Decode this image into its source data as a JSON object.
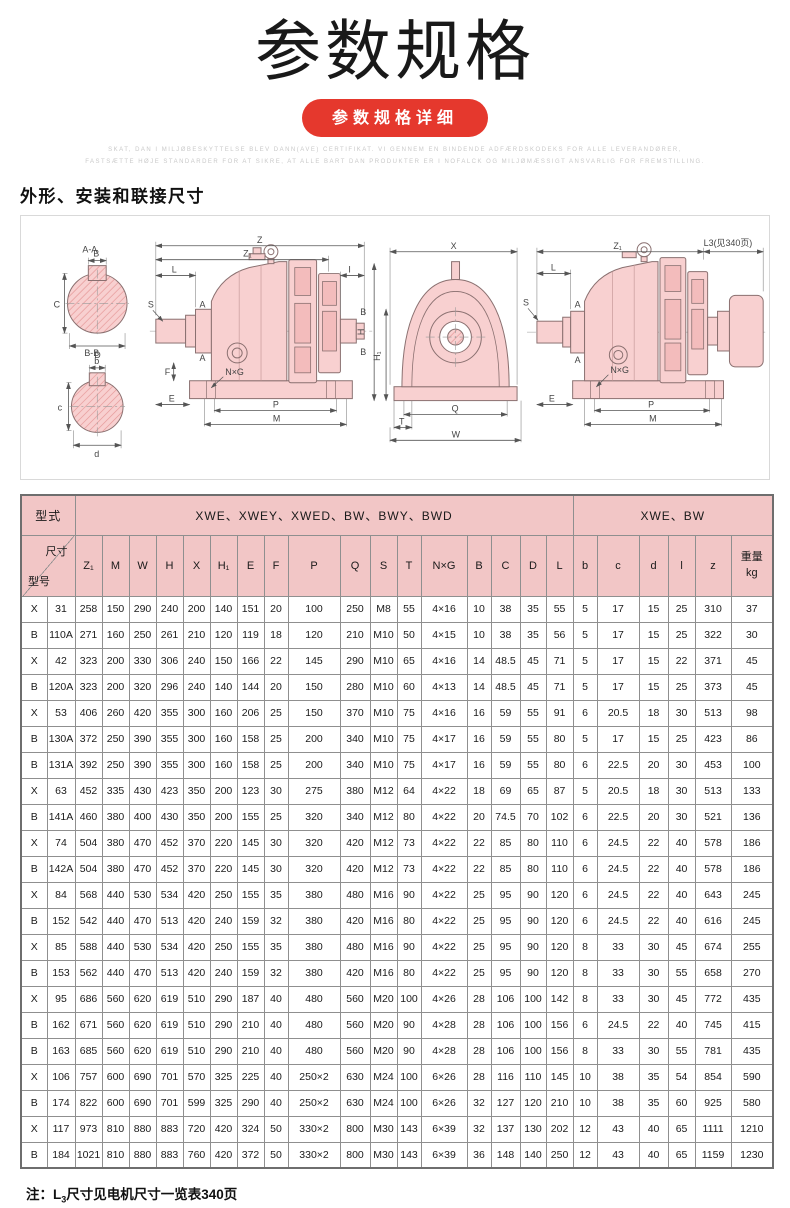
{
  "page": {
    "title": "参数规格",
    "badge": "参数规格详细",
    "fineprint_line1": "SKAT, DAN I MILJØBESKYTTELSE BLEV DANN(AVE) CERTIFIKAT. VI GENNEM EN BINDENDE ADFÆRDSKODEKS FOR ALLE LEVERANDØRER,",
    "fineprint_line2": "FASTSÆTTE HØJE STANDARDER FOR AT SIKRE, AT ALLE BART DAN PRODUKTER ER I NOFALCK OG MILJØMÆSSIGT ANSVARLIG FOR FREMSTILLING.",
    "section_heading": "外形、安装和联接尺寸",
    "note_prefix": "注：L",
    "note_sub": "3",
    "note_rest": "尺寸见电机尺寸一览表340页"
  },
  "colors": {
    "accent_red": "#e5382d",
    "header_pink": "#f2c6c6",
    "drawing_pink": "#f8d0d0",
    "grid_line": "#8f8f8f"
  },
  "diagram": {
    "labels": {
      "aa": "A-A",
      "bb": "B-B",
      "B": "B",
      "C": "C",
      "D": "D",
      "b": "b",
      "c": "c",
      "d": "d",
      "Z": "Z",
      "Z1": "Z₁",
      "L": "L",
      "I": "I",
      "S": "S",
      "A": "A",
      "NxG": "N×G",
      "F": "F",
      "E": "E",
      "P": "P",
      "M": "M",
      "X": "X",
      "H": "H",
      "H1": "H₁",
      "Q": "Q",
      "T": "T",
      "W": "W",
      "L3": "L3(见340页)"
    }
  },
  "table": {
    "type_header": "型式",
    "group1": "XWE、XWEY、XWED、BW、BWY、BWD",
    "group2": "XWE、BW",
    "corner_top": "尺寸",
    "corner_bottom": "型号",
    "columns": [
      "Z₁",
      "M",
      "W",
      "H",
      "X",
      "H₁",
      "E",
      "F",
      "P",
      "Q",
      "S",
      "T",
      "N×G",
      "B",
      "C",
      "D",
      "L",
      "b",
      "c",
      "d",
      "l",
      "z"
    ],
    "weight_line1": "重量",
    "weight_line2": "kg",
    "rows": [
      [
        "X",
        "31",
        "258",
        "150",
        "290",
        "240",
        "200",
        "140",
        "151",
        "20",
        "100",
        "250",
        "M8",
        "55",
        "4×16",
        "10",
        "38",
        "35",
        "55",
        "5",
        "17",
        "15",
        "25",
        "310",
        "37"
      ],
      [
        "B",
        "110A",
        "271",
        "160",
        "250",
        "261",
        "210",
        "120",
        "119",
        "18",
        "120",
        "210",
        "M10",
        "50",
        "4×15",
        "10",
        "38",
        "35",
        "56",
        "5",
        "17",
        "15",
        "25",
        "322",
        "30"
      ],
      [
        "X",
        "42",
        "323",
        "200",
        "330",
        "306",
        "240",
        "150",
        "166",
        "22",
        "145",
        "290",
        "M10",
        "65",
        "4×16",
        "14",
        "48.5",
        "45",
        "71",
        "5",
        "17",
        "15",
        "22",
        "371",
        "45"
      ],
      [
        "B",
        "120A",
        "323",
        "200",
        "320",
        "296",
        "240",
        "140",
        "144",
        "20",
        "150",
        "280",
        "M10",
        "60",
        "4×13",
        "14",
        "48.5",
        "45",
        "71",
        "5",
        "17",
        "15",
        "25",
        "373",
        "45"
      ],
      [
        "X",
        "53",
        "406",
        "260",
        "420",
        "355",
        "300",
        "160",
        "206",
        "25",
        "150",
        "370",
        "M10",
        "75",
        "4×16",
        "16",
        "59",
        "55",
        "91",
        "6",
        "20.5",
        "18",
        "30",
        "513",
        "98"
      ],
      [
        "B",
        "130A",
        "372",
        "250",
        "390",
        "355",
        "300",
        "160",
        "158",
        "25",
        "200",
        "340",
        "M10",
        "75",
        "4×17",
        "16",
        "59",
        "55",
        "80",
        "5",
        "17",
        "15",
        "25",
        "423",
        "86"
      ],
      [
        "B",
        "131A",
        "392",
        "250",
        "390",
        "355",
        "300",
        "160",
        "158",
        "25",
        "200",
        "340",
        "M10",
        "75",
        "4×17",
        "16",
        "59",
        "55",
        "80",
        "6",
        "22.5",
        "20",
        "30",
        "453",
        "100"
      ],
      [
        "X",
        "63",
        "452",
        "335",
        "430",
        "423",
        "350",
        "200",
        "123",
        "30",
        "275",
        "380",
        "M12",
        "64",
        "4×22",
        "18",
        "69",
        "65",
        "87",
        "5",
        "20.5",
        "18",
        "30",
        "513",
        "133"
      ],
      [
        "B",
        "141A",
        "460",
        "380",
        "400",
        "430",
        "350",
        "200",
        "155",
        "25",
        "320",
        "340",
        "M12",
        "80",
        "4×22",
        "20",
        "74.5",
        "70",
        "102",
        "6",
        "22.5",
        "20",
        "30",
        "521",
        "136"
      ],
      [
        "X",
        "74",
        "504",
        "380",
        "470",
        "452",
        "370",
        "220",
        "145",
        "30",
        "320",
        "420",
        "M12",
        "73",
        "4×22",
        "22",
        "85",
        "80",
        "110",
        "6",
        "24.5",
        "22",
        "40",
        "578",
        "186"
      ],
      [
        "B",
        "142A",
        "504",
        "380",
        "470",
        "452",
        "370",
        "220",
        "145",
        "30",
        "320",
        "420",
        "M12",
        "73",
        "4×22",
        "22",
        "85",
        "80",
        "110",
        "6",
        "24.5",
        "22",
        "40",
        "578",
        "186"
      ],
      [
        "X",
        "84",
        "568",
        "440",
        "530",
        "534",
        "420",
        "250",
        "155",
        "35",
        "380",
        "480",
        "M16",
        "90",
        "4×22",
        "25",
        "95",
        "90",
        "120",
        "6",
        "24.5",
        "22",
        "40",
        "643",
        "245"
      ],
      [
        "B",
        "152",
        "542",
        "440",
        "470",
        "513",
        "420",
        "240",
        "159",
        "32",
        "380",
        "420",
        "M16",
        "80",
        "4×22",
        "25",
        "95",
        "90",
        "120",
        "6",
        "24.5",
        "22",
        "40",
        "616",
        "245"
      ],
      [
        "X",
        "85",
        "588",
        "440",
        "530",
        "534",
        "420",
        "250",
        "155",
        "35",
        "380",
        "480",
        "M16",
        "90",
        "4×22",
        "25",
        "95",
        "90",
        "120",
        "8",
        "33",
        "30",
        "45",
        "674",
        "255"
      ],
      [
        "B",
        "153",
        "562",
        "440",
        "470",
        "513",
        "420",
        "240",
        "159",
        "32",
        "380",
        "420",
        "M16",
        "80",
        "4×22",
        "25",
        "95",
        "90",
        "120",
        "8",
        "33",
        "30",
        "55",
        "658",
        "270"
      ],
      [
        "X",
        "95",
        "686",
        "560",
        "620",
        "619",
        "510",
        "290",
        "187",
        "40",
        "480",
        "560",
        "M20",
        "100",
        "4×26",
        "28",
        "106",
        "100",
        "142",
        "8",
        "33",
        "30",
        "45",
        "772",
        "435"
      ],
      [
        "B",
        "162",
        "671",
        "560",
        "620",
        "619",
        "510",
        "290",
        "210",
        "40",
        "480",
        "560",
        "M20",
        "90",
        "4×28",
        "28",
        "106",
        "100",
        "156",
        "6",
        "24.5",
        "22",
        "40",
        "745",
        "415"
      ],
      [
        "B",
        "163",
        "685",
        "560",
        "620",
        "619",
        "510",
        "290",
        "210",
        "40",
        "480",
        "560",
        "M20",
        "90",
        "4×28",
        "28",
        "106",
        "100",
        "156",
        "8",
        "33",
        "30",
        "55",
        "781",
        "435"
      ],
      [
        "X",
        "106",
        "757",
        "600",
        "690",
        "701",
        "570",
        "325",
        "225",
        "40",
        "250×2",
        "630",
        "M24",
        "100",
        "6×26",
        "28",
        "116",
        "110",
        "145",
        "10",
        "38",
        "35",
        "54",
        "854",
        "590"
      ],
      [
        "B",
        "174",
        "822",
        "600",
        "690",
        "701",
        "599",
        "325",
        "290",
        "40",
        "250×2",
        "630",
        "M24",
        "100",
        "6×26",
        "32",
        "127",
        "120",
        "210",
        "10",
        "38",
        "35",
        "60",
        "925",
        "580"
      ],
      [
        "X",
        "117",
        "973",
        "810",
        "880",
        "883",
        "720",
        "420",
        "324",
        "50",
        "330×2",
        "800",
        "M30",
        "143",
        "6×39",
        "32",
        "137",
        "130",
        "202",
        "12",
        "43",
        "40",
        "65",
        "1111",
        "1210"
      ],
      [
        "B",
        "184",
        "1021",
        "810",
        "880",
        "883",
        "760",
        "420",
        "372",
        "50",
        "330×2",
        "800",
        "M30",
        "143",
        "6×39",
        "36",
        "148",
        "140",
        "250",
        "12",
        "43",
        "40",
        "65",
        "1159",
        "1230"
      ]
    ]
  }
}
